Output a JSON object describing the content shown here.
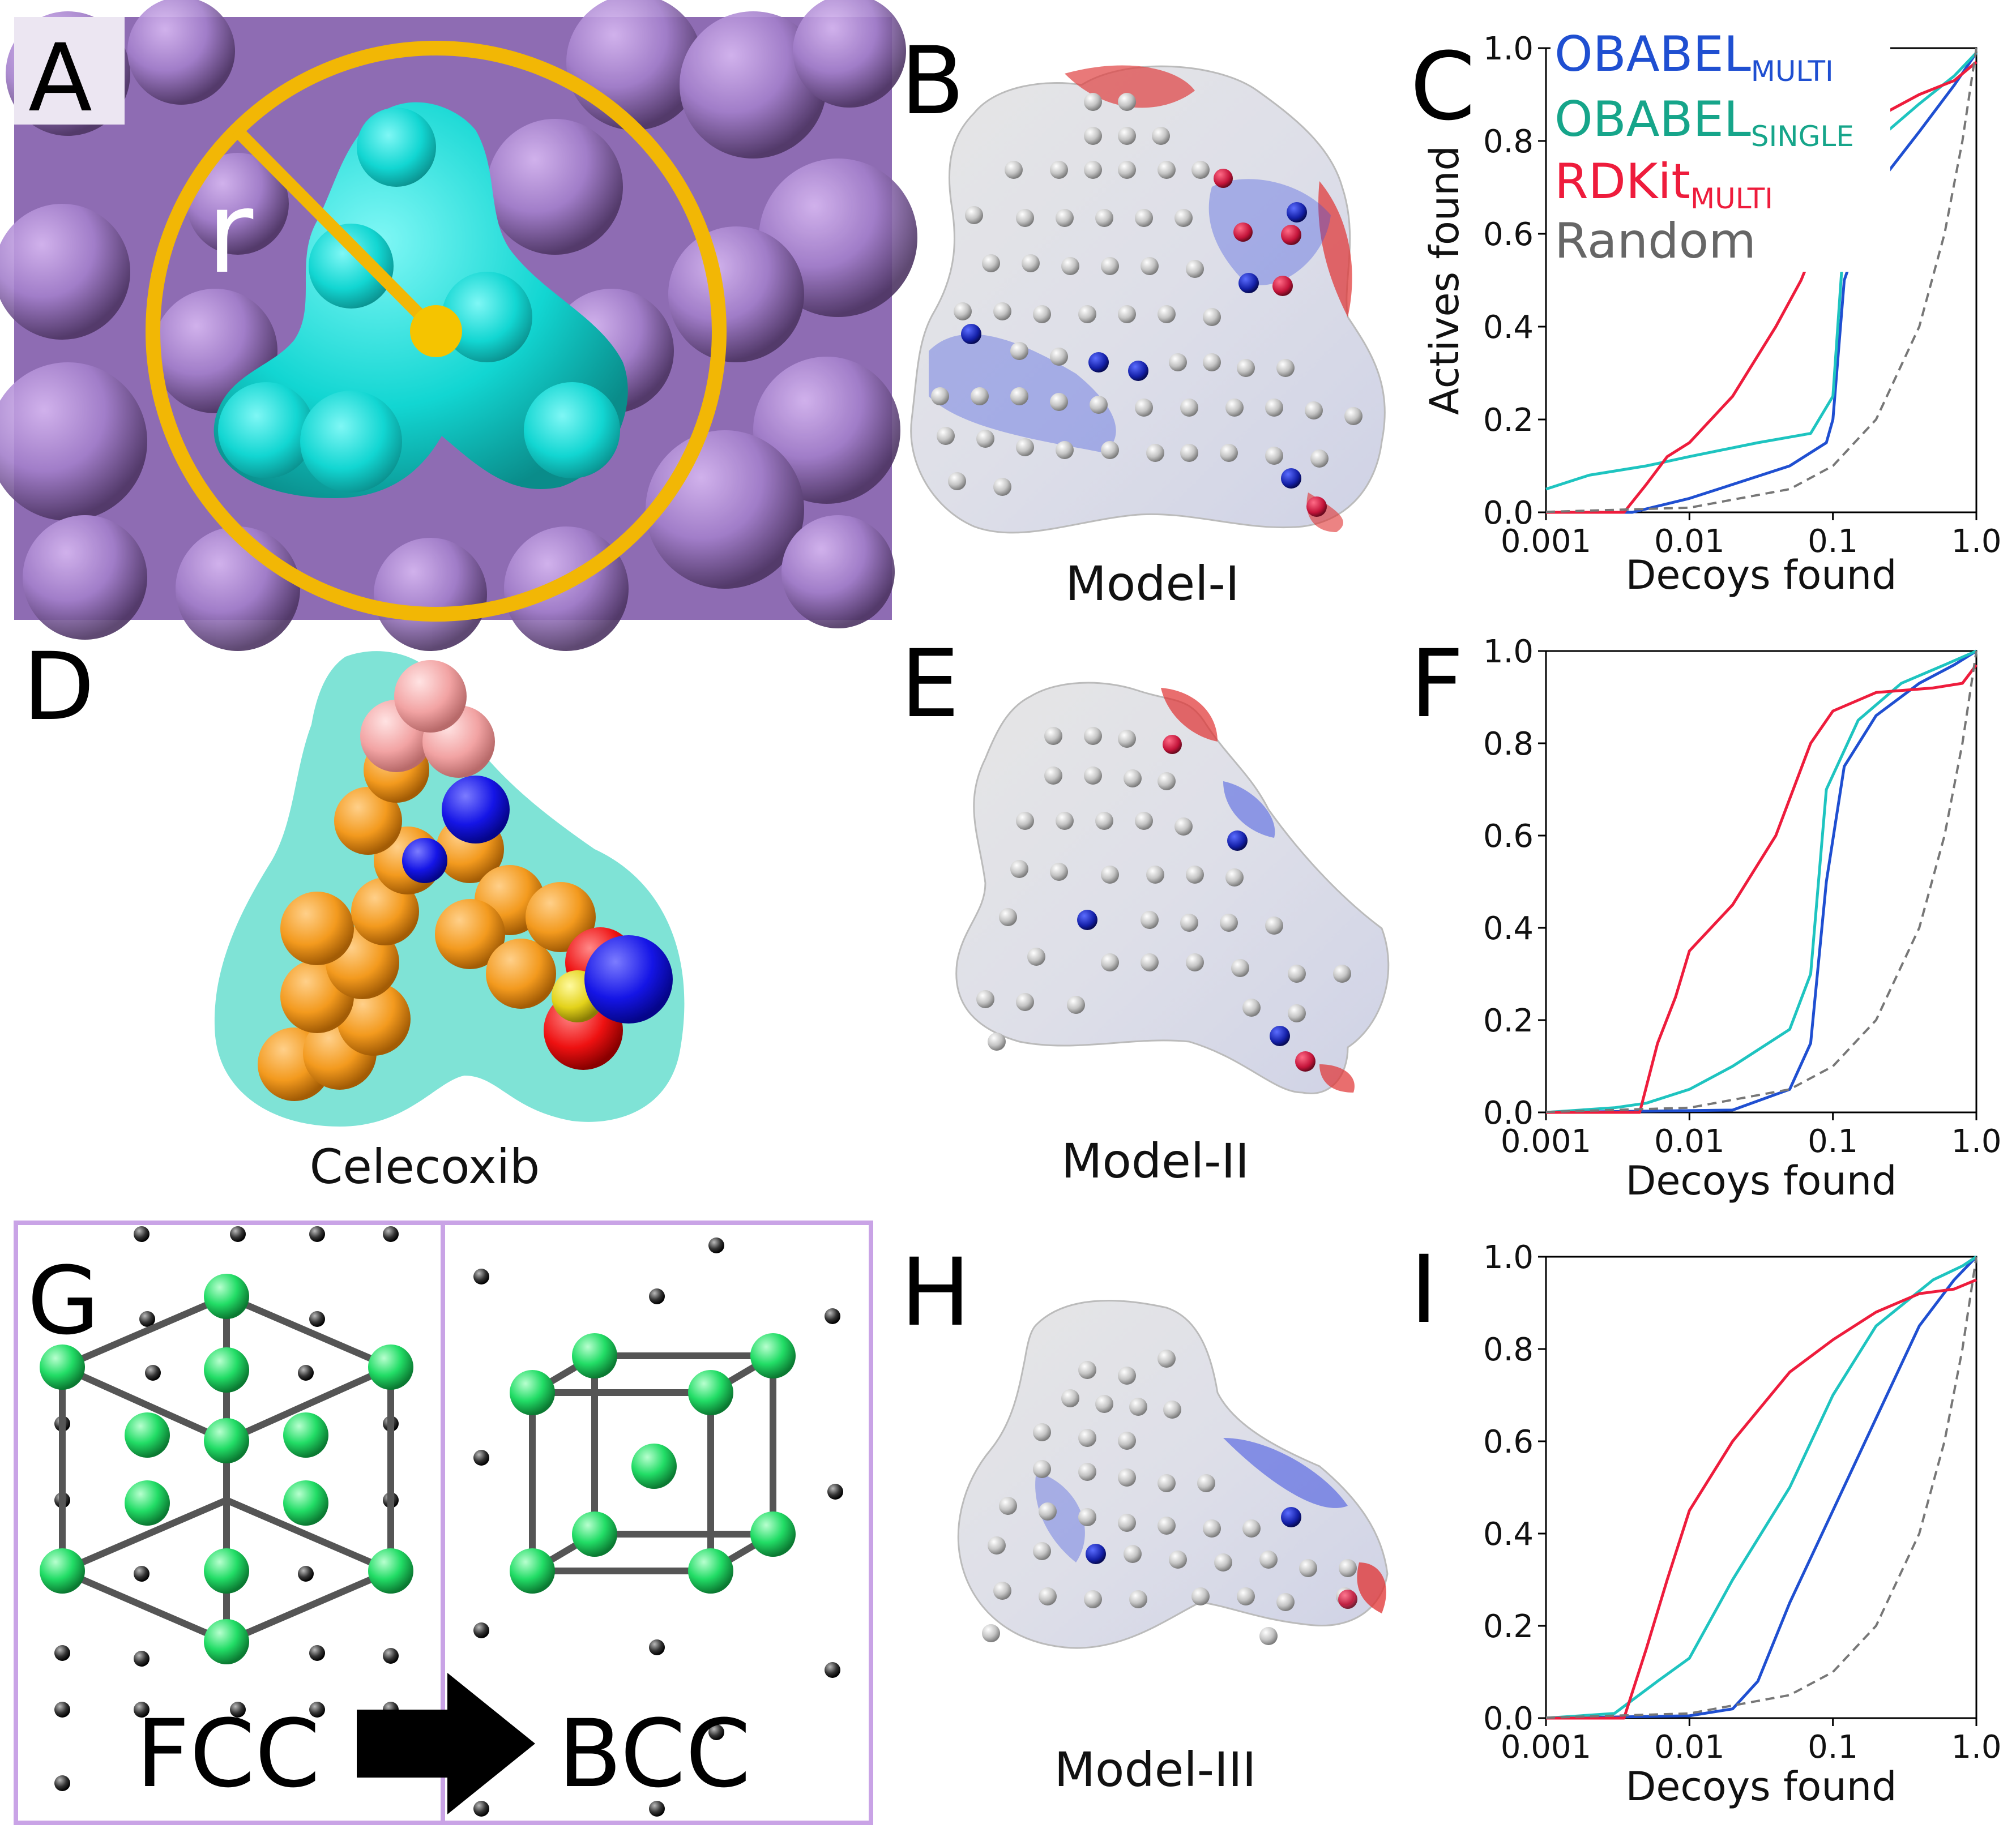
{
  "panel_labels": {
    "a": "A",
    "b": "B",
    "c": "C",
    "d": "D",
    "e": "E",
    "f": "F",
    "g": "G",
    "h": "H",
    "i": "I"
  },
  "panel_a": {
    "radius_label": "r"
  },
  "captions": {
    "b": "Model-I",
    "d": "Celecoxib",
    "e": "Model-II",
    "h": "Model-III"
  },
  "panel_g": {
    "left": "FCC",
    "right": "BCC"
  },
  "legend": {
    "multi_main": "OBABEL",
    "multi_sub": "MULTI",
    "single_main": "OBABEL",
    "single_sub": "SINGLE",
    "rdkit_main": "RDKit",
    "rdkit_sub": "MULTI",
    "random": "Random"
  },
  "colors": {
    "obabel_multi": "#1f4fd1",
    "obabel_single": "#1ec4c0",
    "rdkit_multi": "#ee1c3c",
    "random": "#777777",
    "legend_single_text": "#16a58a",
    "lattice_green": "#22dd66",
    "protein": "#b48fd6",
    "ligand": "#1fe3e0",
    "circle": "#f2b705"
  },
  "chart_data": [
    {
      "id": "C",
      "type": "line",
      "xscale": "log",
      "xlim": [
        0.001,
        1.0
      ],
      "ylim": [
        0,
        1.0
      ],
      "xlabel": "Decoys found",
      "ylabel": "Actives found",
      "xticks": [
        "0.001",
        "0.01",
        "0.1",
        "1.0"
      ],
      "yticks": [
        "0.0",
        "0.2",
        "0.4",
        "0.6",
        "0.8",
        "1.0"
      ],
      "series": [
        {
          "name": "OBABEL MULTI",
          "color": "#1f4fd1",
          "x": [
            0.001,
            0.004,
            0.01,
            0.02,
            0.05,
            0.09,
            0.1,
            0.12,
            0.2,
            0.4,
            0.7,
            1.0
          ],
          "y": [
            0,
            0,
            0.03,
            0.06,
            0.1,
            0.15,
            0.2,
            0.5,
            0.7,
            0.82,
            0.92,
            0.99
          ]
        },
        {
          "name": "OBABEL SINGLE",
          "color": "#1ec4c0",
          "x": [
            0.001,
            0.002,
            0.005,
            0.01,
            0.03,
            0.07,
            0.1,
            0.12,
            0.2,
            0.4,
            0.7,
            1.0
          ],
          "y": [
            0.05,
            0.08,
            0.1,
            0.12,
            0.15,
            0.17,
            0.25,
            0.6,
            0.8,
            0.88,
            0.94,
            0.99
          ]
        },
        {
          "name": "RDKit MULTI",
          "color": "#ee1c3c",
          "x": [
            0.001,
            0.0035,
            0.005,
            0.007,
            0.01,
            0.02,
            0.04,
            0.06,
            0.1,
            0.2,
            0.4,
            0.7,
            1.0
          ],
          "y": [
            0,
            0,
            0.06,
            0.12,
            0.15,
            0.25,
            0.4,
            0.5,
            0.67,
            0.85,
            0.9,
            0.93,
            0.97
          ]
        },
        {
          "name": "Random",
          "color": "#777777",
          "dashed": true,
          "x": [
            0.001,
            0.01,
            0.05,
            0.1,
            0.2,
            0.4,
            0.6,
            0.8,
            1.0
          ],
          "y": [
            0.001,
            0.01,
            0.05,
            0.1,
            0.2,
            0.4,
            0.6,
            0.8,
            1.0
          ]
        }
      ]
    },
    {
      "id": "F",
      "type": "line",
      "xscale": "log",
      "xlim": [
        0.001,
        1.0
      ],
      "ylim": [
        0,
        1.0
      ],
      "xlabel": "Decoys found",
      "ylabel": "",
      "xticks": [
        "0.001",
        "0.01",
        "0.1",
        "1.0"
      ],
      "yticks": [
        "0.0",
        "0.2",
        "0.4",
        "0.6",
        "0.8",
        "1.0"
      ],
      "series": [
        {
          "name": "OBABEL MULTI",
          "color": "#1f4fd1",
          "x": [
            0.001,
            0.02,
            0.05,
            0.07,
            0.09,
            0.12,
            0.2,
            0.4,
            0.7,
            1.0
          ],
          "y": [
            0,
            0.005,
            0.05,
            0.15,
            0.5,
            0.75,
            0.86,
            0.93,
            0.97,
            1.0
          ]
        },
        {
          "name": "OBABEL SINGLE",
          "color": "#1ec4c0",
          "x": [
            0.001,
            0.003,
            0.005,
            0.01,
            0.02,
            0.05,
            0.07,
            0.09,
            0.15,
            0.3,
            0.6,
            1.0
          ],
          "y": [
            0,
            0.01,
            0.02,
            0.05,
            0.1,
            0.18,
            0.3,
            0.7,
            0.85,
            0.93,
            0.97,
            1.0
          ]
        },
        {
          "name": "RDKit MULTI",
          "color": "#ee1c3c",
          "x": [
            0.001,
            0.0045,
            0.006,
            0.008,
            0.01,
            0.02,
            0.04,
            0.07,
            0.1,
            0.2,
            0.5,
            0.8,
            1.0
          ],
          "y": [
            0,
            0,
            0.15,
            0.25,
            0.35,
            0.45,
            0.6,
            0.8,
            0.87,
            0.91,
            0.92,
            0.93,
            0.97
          ]
        },
        {
          "name": "Random",
          "color": "#777777",
          "dashed": true,
          "x": [
            0.001,
            0.01,
            0.05,
            0.1,
            0.2,
            0.4,
            0.6,
            0.8,
            1.0
          ],
          "y": [
            0.001,
            0.01,
            0.05,
            0.1,
            0.2,
            0.4,
            0.6,
            0.8,
            1.0
          ]
        }
      ]
    },
    {
      "id": "I",
      "type": "line",
      "xscale": "log",
      "xlim": [
        0.001,
        1.0
      ],
      "ylim": [
        0,
        1.0
      ],
      "xlabel": "Decoys found",
      "ylabel": "",
      "xticks": [
        "0.001",
        "0.01",
        "0.1",
        "1.0"
      ],
      "yticks": [
        "0.0",
        "0.2",
        "0.4",
        "0.6",
        "0.8",
        "1.0"
      ],
      "series": [
        {
          "name": "OBABEL MULTI",
          "color": "#1f4fd1",
          "x": [
            0.001,
            0.01,
            0.02,
            0.03,
            0.05,
            0.1,
            0.2,
            0.4,
            0.7,
            1.0
          ],
          "y": [
            0,
            0.005,
            0.02,
            0.08,
            0.25,
            0.45,
            0.65,
            0.85,
            0.95,
            1.0
          ]
        },
        {
          "name": "OBABEL SINGLE",
          "color": "#1ec4c0",
          "x": [
            0.001,
            0.003,
            0.006,
            0.01,
            0.02,
            0.05,
            0.1,
            0.2,
            0.5,
            0.8,
            1.0
          ],
          "y": [
            0,
            0.01,
            0.08,
            0.13,
            0.3,
            0.5,
            0.7,
            0.85,
            0.95,
            0.98,
            1.0
          ]
        },
        {
          "name": "RDKit MULTI",
          "color": "#ee1c3c",
          "x": [
            0.001,
            0.0035,
            0.005,
            0.007,
            0.01,
            0.02,
            0.05,
            0.1,
            0.2,
            0.4,
            0.7,
            1.0
          ],
          "y": [
            0,
            0,
            0.15,
            0.3,
            0.45,
            0.6,
            0.75,
            0.82,
            0.88,
            0.92,
            0.93,
            0.95
          ]
        },
        {
          "name": "Random",
          "color": "#777777",
          "dashed": true,
          "x": [
            0.001,
            0.01,
            0.05,
            0.1,
            0.2,
            0.4,
            0.6,
            0.8,
            1.0
          ],
          "y": [
            0.001,
            0.01,
            0.05,
            0.1,
            0.2,
            0.4,
            0.6,
            0.8,
            1.0
          ]
        }
      ]
    }
  ]
}
